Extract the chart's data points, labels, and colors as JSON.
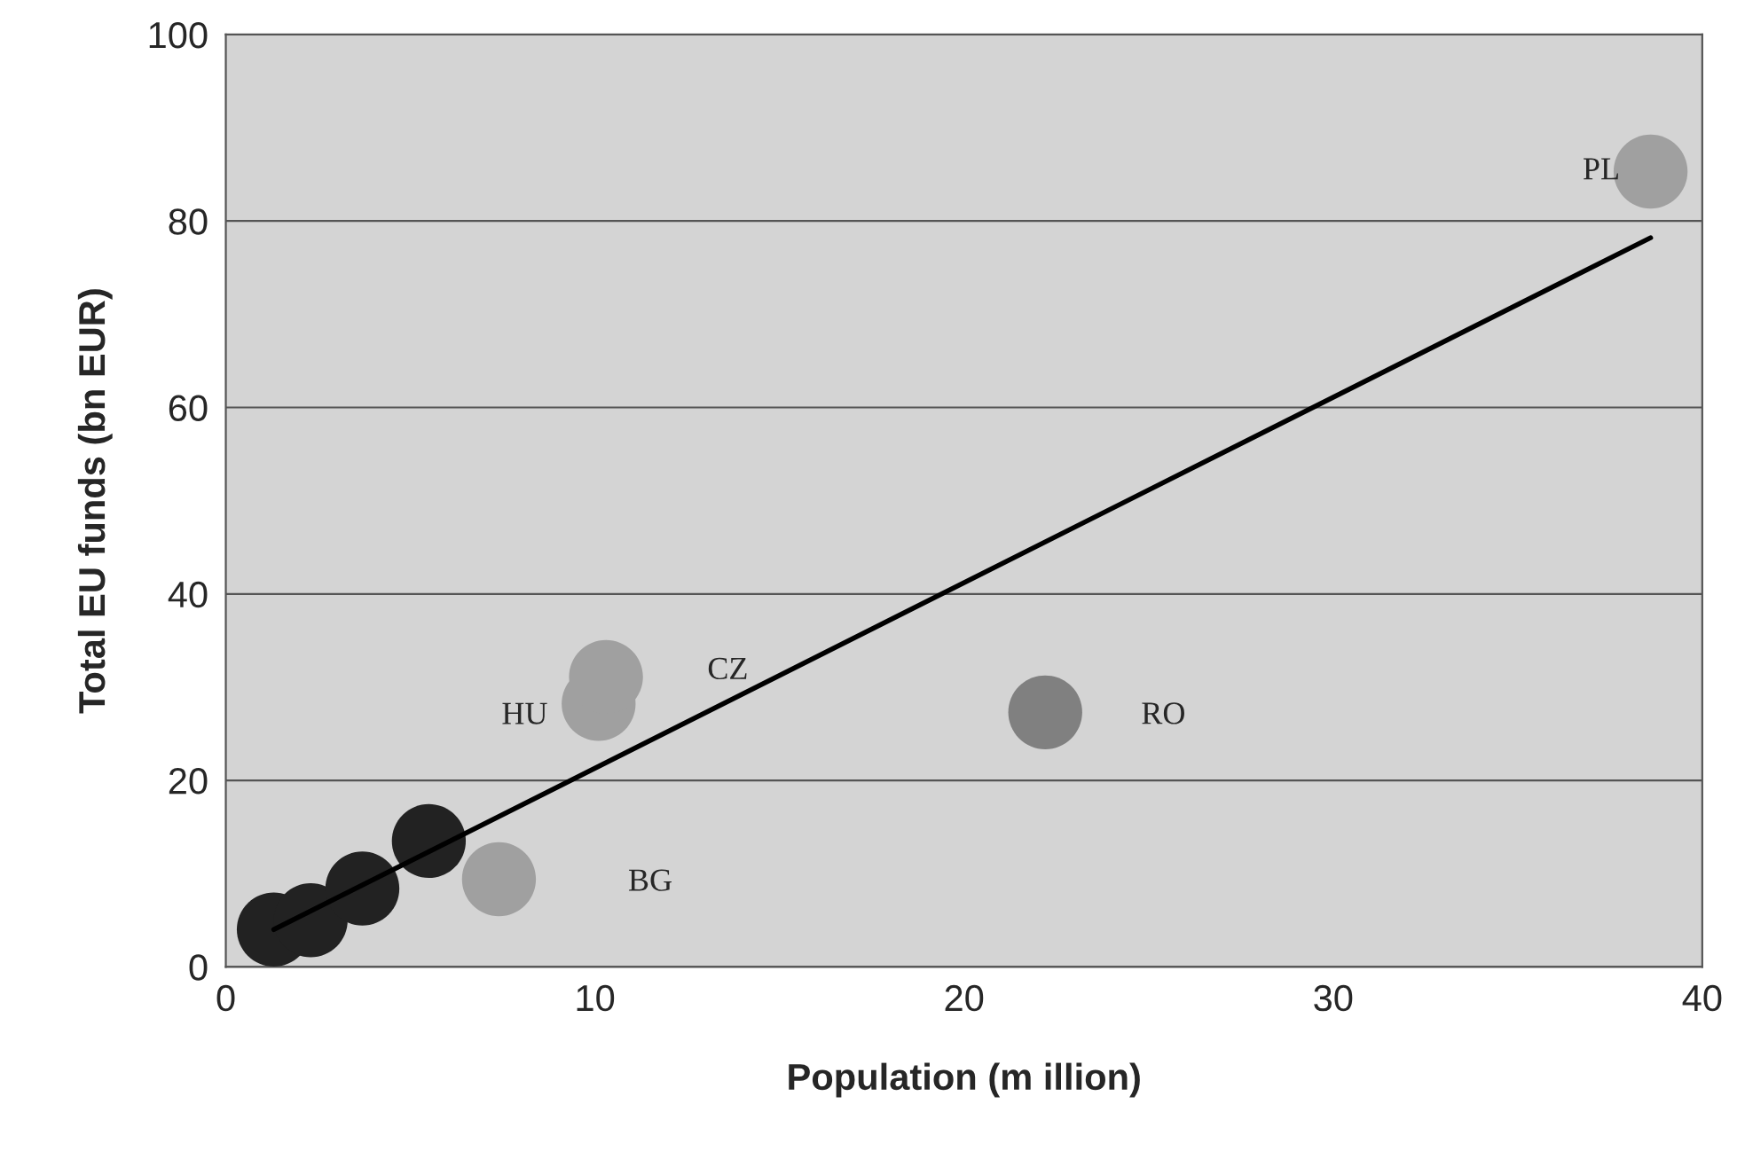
{
  "chart_data": {
    "type": "scatter",
    "xlabel": "Population (m illion)",
    "ylabel": "Total EU funds (bn EUR)",
    "xlim": [
      0,
      40
    ],
    "xticks": [
      0,
      10,
      20,
      30,
      40
    ],
    "ylim": [
      0,
      100
    ],
    "yticks": [
      0,
      20,
      40,
      60,
      80,
      100
    ],
    "grid": "y",
    "series": [
      {
        "marker": "circle",
        "x": [
          1.3,
          2.3,
          3.7,
          5.5,
          7.4,
          10.1,
          10.3,
          22.2,
          38.6
        ],
        "values": [
          4.0,
          5.0,
          8.4,
          13.5,
          9.4,
          28.2,
          31.1,
          27.3,
          85.3
        ],
        "colors": [
          "#222222",
          "#222222",
          "#222222",
          "#222222",
          "#a0a0a0",
          "#a0a0a0",
          "#a0a0a0",
          "#808080",
          "#a0a0a0"
        ]
      },
      {
        "type": "line",
        "x": [
          1.3,
          38.6
        ],
        "values": [
          4.0,
          78.2
        ],
        "color": "#000000",
        "line_style": "solid"
      }
    ],
    "annotations": [
      {
        "text": "PL",
        "x": 38.6,
        "y": 85.3
      },
      "CZ",
      {
        "text": "HU",
        "x": 10.1,
        "y": 28.2
      },
      "RO",
      "BG"
    ]
  }
}
